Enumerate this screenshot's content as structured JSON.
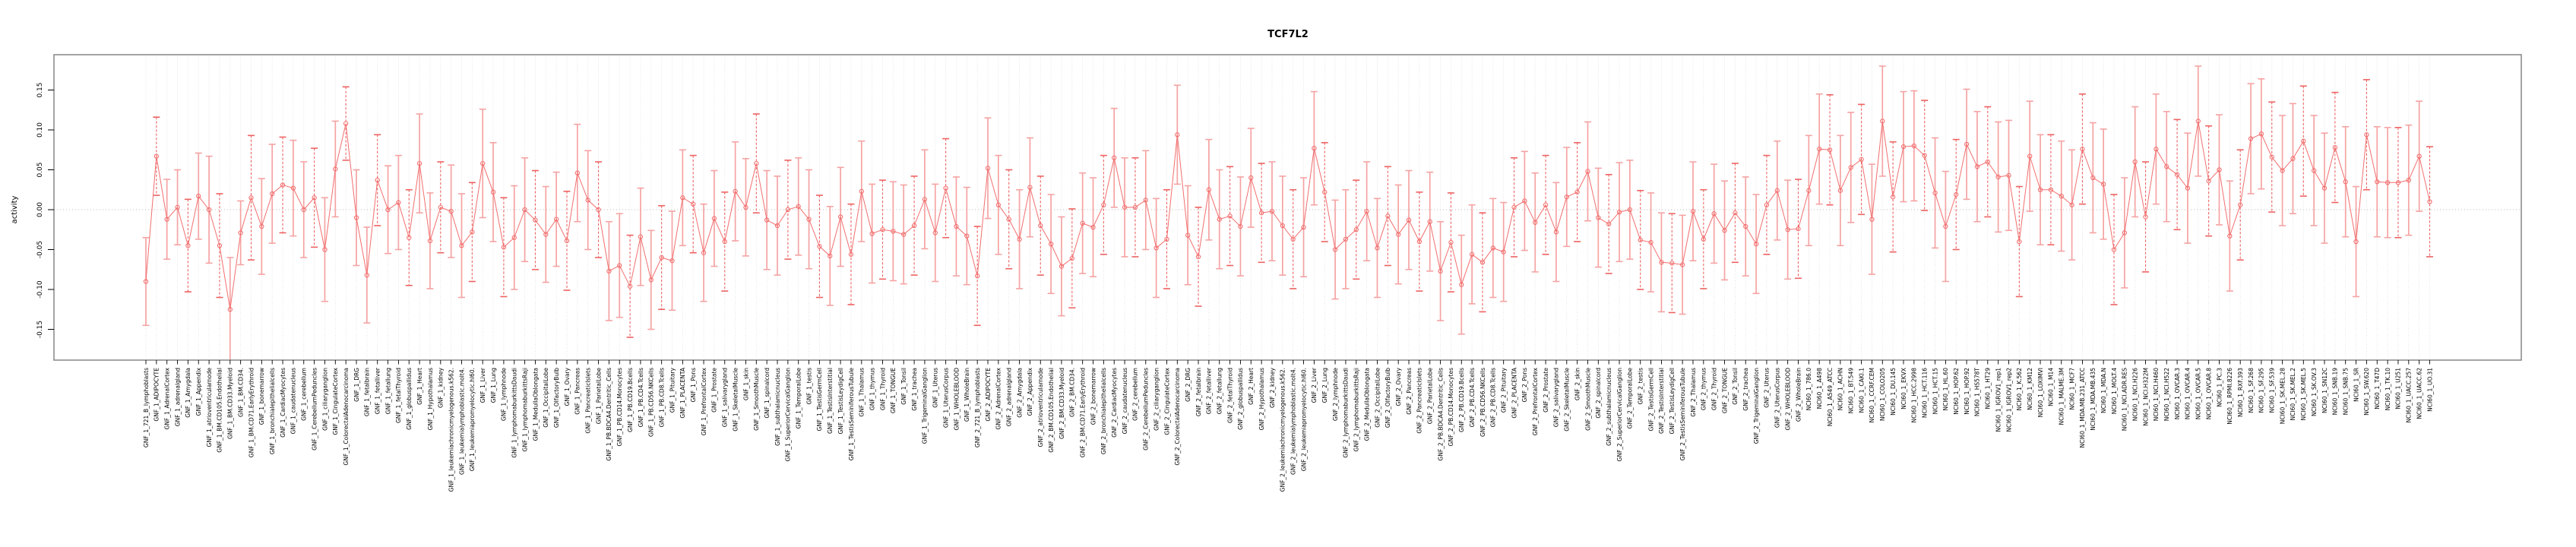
{
  "title": "TCF7L2",
  "y_axis": {
    "label": "activity",
    "ticks": [
      "0.15",
      "0.10",
      "0.05",
      "0.00",
      "-0.05",
      "-0.10",
      "-0.15"
    ],
    "tick_values": [
      0.15,
      0.1,
      0.05,
      0.0,
      -0.05,
      -0.1,
      -0.15
    ]
  },
  "chart_data": {
    "type": "scatter",
    "title": "TCF7L2",
    "xlabel": "",
    "ylabel": "activity",
    "ylim": [
      -0.19,
      0.185
    ],
    "grid": "vertical dotted gridline at every category; dotted horizontal line at y=0",
    "legend": "none",
    "marker": "open-circle with error bars (caps), points connected by line",
    "colors": {
      "point": "#f26e6e",
      "line": "#f26e6e",
      "error_bar": "#f5a3a3",
      "error_bar_dashed": "#ee6262",
      "grid": "#e0e0e0",
      "zero_line": "#bbbbbb",
      "box": "#858585"
    },
    "categories": [
      "GNF_1_721_B_lymphoblasts",
      "GNF_1_ADIPOCYTE",
      "GNF_1_AdrenalCortex",
      "GNF_1_adrenalgland",
      "GNF_1_Amygdala",
      "GNF_1_Appendix",
      "GNF_1_atrioventricularnode",
      "GNF_1_BM.CD105.Endothelial",
      "GNF_1_BM.CD33.Myeloid",
      "GNF_1_BM.CD34.",
      "GNF_1_BM.CD71.EarlyErythroid",
      "GNF_1_bonemarrow",
      "GNF_1_bronchialepithelialcells",
      "GNF_1_CardiacMyocytes",
      "GNF_1_caudatenucleus",
      "GNF_1_cerebellum",
      "GNF_1_CerebellumPeduncles",
      "GNF_1_ciliaryganglion",
      "GNF_1_CingulateCortex",
      "GNF_1_ColorectalAdenocarcinoma",
      "GNF_1_DRG",
      "GNF_1_fetalbrain",
      "GNF_1_fetalliver",
      "GNF_1_fetallung",
      "GNF_1_fetalThyroid",
      "GNF_1_globuspallidus",
      "GNF_1_Heart",
      "GNF_1_Hypothalamus",
      "GNF_1_kidney",
      "GNF_1_leukemiachronicmyelogenous.k562.",
      "GNF_1_leukemialymphoblastic.molt4.",
      "GNF_1_leukemiapromyelocytic.hl60.",
      "GNF_1_Liver",
      "GNF_1_Lung",
      "GNF_1_lymphnode",
      "GNF_1_lymphomaburkittsDaudi",
      "GNF_1_lymphomaburkittsRaji",
      "GNF_1_MedullaOblongata",
      "GNF_1_OccipitalLobe",
      "GNF_1_OlfactoryBulb",
      "GNF_1_Ovary",
      "GNF_1_Pancreas",
      "GNF_1_PancreaticIslets",
      "GNF_1_ParietalLobe",
      "GNF_1_PB.BDCA4.Dentritic_Cells",
      "GNF_1_PB.CD14.Monocytes",
      "GNF_1_PB.CD19.Bcells",
      "GNF_1_PB.CD4.Tcells",
      "GNF_1_PB.CD56.NKCells",
      "GNF_1_PB.CD8.Tcells",
      "GNF_1_Pituitary",
      "GNF_1_PLACENTA",
      "GNF_1_Pons",
      "GNF_1_PrefrontalCortex",
      "GNF_1_Prostate",
      "GNF_1_salivarygland",
      "GNF_1_SkeletalMuscle",
      "GNF_1_skin",
      "GNF_1_SmoothMuscle",
      "GNF_1_spinalcord",
      "GNF_1_subthalamicnucleus",
      "GNF_1_SuperiorCervicalGanglion",
      "GNF_1_TemporalLobe",
      "GNF_1_testis",
      "GNF_1_TestisGermCell",
      "GNF_1_TestisInterstitial",
      "GNF_1_TestisLeydigCell",
      "GNF_1_TestisSeminiferousTubule",
      "GNF_1_Thalamus",
      "GNF_1_thymus",
      "GNF_1_Thyroid",
      "GNF_1_TONGUE",
      "GNF_1_Tonsil",
      "GNF_1_trachea",
      "GNF_1_TrigeminalGanglion",
      "GNF_1_Uterus",
      "GNF_1_UterusCorpus",
      "GNF_1_WHOLEBLOOD",
      "GNF_1_WholeBrain",
      "GNF_2_721_B_lymphoblasts",
      "GNF_2_ADIPOCYTE",
      "GNF_2_AdrenalCortex",
      "GNF_2_adrenalgland",
      "GNF_2_Amygdala",
      "GNF_2_Appendix",
      "GNF_2_atrioventricularnode",
      "GNF_2_BM.CD105.Endothelial",
      "GNF_2_BM.CD33.Myeloid",
      "GNF_2_BM.CD34.",
      "GNF_2_BM.CD71.EarlyErythroid",
      "GNF_2_bonemarrow",
      "GNF_2_bronchialepithelialcells",
      "GNF_2_CardiacMyocytes",
      "GNF_2_caudatenucleus",
      "GNF_2_cerebellum",
      "GNF_2_CerebellumPeduncles",
      "GNF_2_ciliaryganglion",
      "GNF_2_CingulateCortex",
      "GNF_2_ColorectalAdenocarcinoma",
      "GNF_2_DRG",
      "GNF_2_fetalbrain",
      "GNF_2_fetalliver",
      "GNF_2_fetallung",
      "GNF_2_fetalThyroid",
      "GNF_2_globuspallidus",
      "GNF_2_Heart",
      "GNF_2_Hypothalamus",
      "GNF_2_kidney",
      "GNF_2_leukemiachronicmyelogenous.k562.",
      "GNF_2_leukemialymphoblastic.molt4.",
      "GNF_2_leukemiapromyelocytic.hl60.",
      "GNF_2_Liver",
      "GNF_2_Lung",
      "GNF_2_lymphnode",
      "GNF_2_lymphomaburkittsDaudi",
      "GNF_2_lymphomaburkittsRaji",
      "GNF_2_MedullaOblongata",
      "GNF_2_OccipitalLobe",
      "GNF_2_OlfactoryBulb",
      "GNF_2_Ovary",
      "GNF_2_Pancreas",
      "GNF_2_PancreaticIslets",
      "GNF_2_ParietalLobe",
      "GNF_2_PB.BDCA4.Dentritic_Cells",
      "GNF_2_PB.CD14.Monocytes",
      "GNF_2_PB.CD19.Bcells",
      "GNF_2_PB.CD4.Tcells",
      "GNF_2_PB.CD56.NKCells",
      "GNF_2_PB.CD8.Tcells",
      "GNF_2_Pituitary",
      "GNF_2_PLACENTA",
      "GNF_2_Pons",
      "GNF_2_PrefrontalCortex",
      "GNF_2_Prostate",
      "GNF_2_salivarygland",
      "GNF_2_SkeletalMuscle",
      "GNF_2_skin",
      "GNF_2_SmoothMuscle",
      "GNF_2_spinalcord",
      "GNF_2_subthalamicnucleus",
      "GNF_2_SuperiorCervicalGanglion",
      "GNF_2_TemporalLobe",
      "GNF_2_testis",
      "GNF_2_TestisGermCell",
      "GNF_2_TestisInterstitial",
      "GNF_2_TestisLeydigCell",
      "GNF_2_TestisSeminiferousTubule",
      "GNF_2_Thalamus",
      "GNF_2_thymus",
      "GNF_2_Thyroid",
      "GNF_2_TONGUE",
      "GNF_2_Tonsil",
      "GNF_2_trachea",
      "GNF_2_TrigeminalGanglion",
      "GNF_2_Uterus",
      "GNF_2_UterusCorpus",
      "GNF_2_WHOLEBLOOD",
      "GNF_2_WholeBrain",
      "NCI60_1_786.0",
      "NCI60_1_A498",
      "NCI60_1_A549_ATCC",
      "NCI60_1_ACHN",
      "NCI60_1_BT.549",
      "NCI60_1_CAKI.1",
      "NCI60_1_CCRF.CEM",
      "NCI60_1_COLO205",
      "NCI60_1_DU.145",
      "NCI60_1_EKVX",
      "NCI60_1_HCC.2998",
      "NCI60_1_HCT.116",
      "NCI60_1_HCT.15",
      "NCI60_1_HL.60",
      "NCI60_1_HOP.62",
      "NCI60_1_HOP.92",
      "NCI60_1_HS578T",
      "NCI60_1_HT29",
      "NCI60_1_IGROV1_rep1",
      "NCI60_1_IGROV1_rep2",
      "NCI60_1_K.562",
      "NCI60_1_KM12",
      "NCI60_1_LOXIMVI",
      "NCI60_1_M14",
      "NCI60_1_MALME.3M",
      "NCI60_1_MCF7",
      "NCI60_1_MDA.MB.231_ATCC",
      "NCI60_1_MDA.MB.435",
      "NCI60_1_MDA.N",
      "NCI60_1_MOLT.4",
      "NCI60_1_NCI.ADR.RES",
      "NCI60_1_NCI.H226",
      "NCI60_1_NCI.H322M",
      "NCI60_1_NCI.H460",
      "NCI60_1_NCI.H522",
      "NCI60_1_OVCAR.3",
      "NCI60_1_OVCAR.4",
      "NCI60_1_OVCAR.5",
      "NCI60_1_OVCAR.8",
      "NCI60_1_PC.3",
      "NCI60_1_RPMI.8226",
      "NCI60_1_RXF.393",
      "NCI60_1_SF.268",
      "NCI60_1_SF.295",
      "NCI60_1_SF.539",
      "NCI60_1_SK.MEL.28",
      "NCI60_1_SK.MEL.2",
      "NCI60_1_SK.MEL.5",
      "NCI60_1_SK.OV.3",
      "NCI60_1_SN12C",
      "NCI60_1_SNB.19",
      "NCI60_1_SNB.75",
      "NCI60_1_SR",
      "NCI60_1_SW.620",
      "NCI60_1_T47D",
      "NCI60_1_TK.10",
      "NCI60_1_U251",
      "NCI60_1_UACC.257",
      "NCI60_1_UACC.62",
      "NCI60_1_UO.31"
    ],
    "values": [
      -0.09,
      0.067,
      -0.012,
      0.003,
      -0.045,
      0.017,
      0.0,
      -0.045,
      -0.125,
      -0.029,
      0.015,
      -0.021,
      0.02,
      0.031,
      0.027,
      0.0,
      0.015,
      -0.05,
      0.051,
      0.108,
      -0.01,
      -0.082,
      0.037,
      0.0,
      0.009,
      -0.035,
      0.058,
      -0.039,
      0.003,
      -0.002,
      -0.045,
      -0.028,
      0.058,
      0.022,
      -0.047,
      -0.035,
      0.0,
      -0.013,
      -0.031,
      -0.012,
      -0.039,
      0.046,
      0.012,
      0.0,
      -0.077,
      -0.07,
      -0.096,
      -0.034,
      -0.088,
      -0.06,
      -0.064,
      0.015,
      0.007,
      -0.054,
      -0.011,
      -0.04,
      0.023,
      0.003,
      0.058,
      -0.013,
      -0.02,
      0.0,
      0.004,
      -0.012,
      -0.046,
      -0.058,
      -0.009,
      -0.056,
      0.023,
      -0.03,
      -0.025,
      -0.027,
      -0.031,
      -0.02,
      0.013,
      -0.029,
      0.027,
      -0.021,
      -0.033,
      -0.083,
      0.052,
      0.006,
      -0.012,
      -0.037,
      0.028,
      -0.02,
      -0.043,
      -0.071,
      -0.061,
      -0.017,
      -0.022,
      0.006,
      0.065,
      0.003,
      0.003,
      0.012,
      -0.048,
      -0.037,
      0.094,
      -0.032,
      -0.059,
      0.025,
      -0.012,
      -0.008,
      -0.021,
      0.04,
      -0.004,
      -0.002,
      -0.02,
      -0.037,
      -0.022,
      0.077,
      0.022,
      -0.05,
      -0.037,
      -0.025,
      -0.002,
      -0.048,
      -0.008,
      -0.031,
      -0.013,
      -0.04,
      -0.015,
      -0.077,
      -0.041,
      -0.094,
      -0.056,
      -0.066,
      -0.048,
      -0.053,
      0.003,
      0.011,
      -0.016,
      0.006,
      -0.028,
      0.016,
      0.022,
      0.048,
      -0.01,
      -0.018,
      -0.003,
      0.0,
      -0.038,
      -0.041,
      -0.066,
      -0.067,
      -0.069,
      -0.002,
      -0.037,
      -0.005,
      -0.026,
      -0.004,
      -0.021,
      -0.043,
      0.006,
      0.024,
      -0.025,
      -0.024,
      0.024,
      0.076,
      0.075,
      0.024,
      0.053,
      0.063,
      -0.012,
      0.111,
      0.016,
      0.079,
      0.08,
      0.068,
      0.021,
      -0.021,
      0.019,
      0.082,
      0.054,
      0.06,
      0.041,
      0.043,
      -0.04,
      0.067,
      0.025,
      0.025,
      0.017,
      0.006,
      0.076,
      0.04,
      0.032,
      -0.05,
      -0.029,
      0.06,
      -0.009,
      0.076,
      0.054,
      0.044,
      0.027,
      0.111,
      0.036,
      0.05,
      -0.033,
      0.006,
      0.089,
      0.095,
      0.066,
      0.049,
      0.064,
      0.086,
      0.049,
      0.027,
      0.078,
      0.035,
      -0.04,
      0.094,
      0.035,
      0.034,
      0.034,
      0.037,
      0.067,
      0.01
    ],
    "ci_halfwidths": [
      0.055,
      0.049,
      0.05,
      0.047,
      0.058,
      0.054,
      0.067,
      0.065,
      0.065,
      0.04,
      0.078,
      0.06,
      0.062,
      0.06,
      0.06,
      0.06,
      0.062,
      0.065,
      0.06,
      0.046,
      0.06,
      0.06,
      0.057,
      0.055,
      0.059,
      0.06,
      0.062,
      0.06,
      0.057,
      0.058,
      0.065,
      0.062,
      0.068,
      0.062,
      0.062,
      0.065,
      0.065,
      0.062,
      0.06,
      0.059,
      0.062,
      0.061,
      0.062,
      0.06,
      0.062,
      0.065,
      0.064,
      0.061,
      0.062,
      0.065,
      0.062,
      0.06,
      0.061,
      0.061,
      0.06,
      0.062,
      0.062,
      0.061,
      0.062,
      0.062,
      0.062,
      0.062,
      0.061,
      0.062,
      0.064,
      0.062,
      0.062,
      0.063,
      0.063,
      0.062,
      0.062,
      0.062,
      0.062,
      0.062,
      0.062,
      0.061,
      0.062,
      0.062,
      0.061,
      0.062,
      0.063,
      0.062,
      0.062,
      0.062,
      0.062,
      0.062,
      0.062,
      0.062,
      0.062,
      0.063,
      0.062,
      0.062,
      0.062,
      0.062,
      0.062,
      0.062,
      0.062,
      0.062,
      0.062,
      0.062,
      0.062,
      0.063,
      0.062,
      0.062,
      0.062,
      0.062,
      0.062,
      0.062,
      0.062,
      0.062,
      0.062,
      0.071,
      0.062,
      0.062,
      0.062,
      0.062,
      0.062,
      0.062,
      0.062,
      0.062,
      0.062,
      0.062,
      0.062,
      0.062,
      0.062,
      0.062,
      0.062,
      0.062,
      0.062,
      0.062,
      0.062,
      0.062,
      0.062,
      0.062,
      0.062,
      0.062,
      0.062,
      0.062,
      0.062,
      0.062,
      0.062,
      0.062,
      0.062,
      0.062,
      0.062,
      0.062,
      0.062,
      0.062,
      0.062,
      0.062,
      0.062,
      0.062,
      0.062,
      0.062,
      0.062,
      0.062,
      0.062,
      0.062,
      0.069,
      0.069,
      0.069,
      0.069,
      0.069,
      0.069,
      0.069,
      0.069,
      0.069,
      0.069,
      0.069,
      0.069,
      0.069,
      0.069,
      0.069,
      0.069,
      0.069,
      0.069,
      0.069,
      0.069,
      0.069,
      0.069,
      0.069,
      0.069,
      0.069,
      0.069,
      0.069,
      0.069,
      0.069,
      0.069,
      0.069,
      0.069,
      0.069,
      0.069,
      0.069,
      0.069,
      0.069,
      0.069,
      0.069,
      0.069,
      0.069,
      0.069,
      0.069,
      0.069,
      0.069,
      0.069,
      0.069,
      0.069,
      0.069,
      0.069,
      0.069,
      0.069,
      0.069,
      0.069,
      0.069,
      0.069,
      0.069,
      0.069,
      0.069,
      0.069
    ]
  }
}
